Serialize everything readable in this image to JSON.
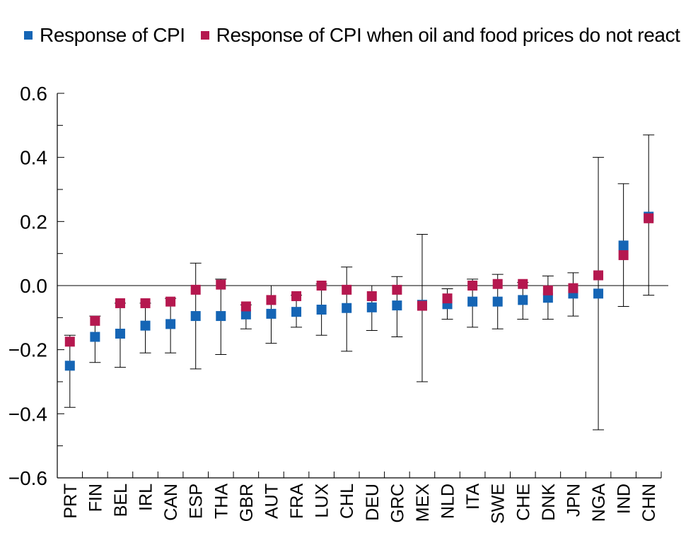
{
  "chart_data": {
    "type": "scatter",
    "title": "",
    "xlabel": "",
    "ylabel": "",
    "ylim": [
      -0.6,
      0.6
    ],
    "yticks": [
      -0.6,
      -0.4,
      -0.2,
      0.0,
      0.2,
      0.4,
      0.6
    ],
    "ytick_labels": [
      "−0.6",
      "−0.4",
      "−0.2",
      "0.0",
      "0.2",
      "0.4",
      "0.6"
    ],
    "grid": false,
    "legend_position": "top",
    "categories": [
      "PRT",
      "FIN",
      "BEL",
      "IRL",
      "CAN",
      "ESP",
      "THA",
      "GBR",
      "AUT",
      "FRA",
      "LUX",
      "CHL",
      "DEU",
      "GRC",
      "MEX",
      "NLD",
      "ITA",
      "SWE",
      "CHE",
      "DNK",
      "JPN",
      "NGA",
      "IND",
      "CHN"
    ],
    "series": [
      {
        "name": "Response of CPI",
        "color": "#1565b5",
        "values": [
          -0.25,
          -0.16,
          -0.15,
          -0.125,
          -0.12,
          -0.095,
          -0.095,
          -0.09,
          -0.088,
          -0.082,
          -0.075,
          -0.07,
          -0.068,
          -0.062,
          -0.06,
          -0.058,
          -0.05,
          -0.05,
          -0.045,
          -0.038,
          -0.025,
          -0.025,
          0.125,
          0.215
        ]
      },
      {
        "name": "Response of CPI when oil and food prices do not react",
        "color": "#b5184f",
        "values": [
          -0.175,
          -0.11,
          -0.055,
          -0.055,
          -0.05,
          -0.013,
          0.003,
          -0.065,
          -0.045,
          -0.033,
          0.0,
          -0.013,
          -0.033,
          -0.013,
          -0.063,
          -0.04,
          0.0,
          0.005,
          0.005,
          -0.015,
          -0.008,
          0.032,
          0.095,
          0.21
        ]
      }
    ],
    "error_bars": {
      "lower": [
        -0.38,
        -0.24,
        -0.255,
        -0.21,
        -0.21,
        -0.26,
        -0.215,
        -0.135,
        -0.18,
        -0.13,
        -0.155,
        -0.205,
        -0.14,
        -0.16,
        -0.3,
        -0.105,
        -0.13,
        -0.135,
        -0.105,
        -0.105,
        -0.095,
        -0.45,
        -0.065,
        -0.03
      ],
      "upper": [
        -0.155,
        -0.095,
        -0.055,
        -0.055,
        -0.04,
        0.07,
        0.02,
        -0.06,
        0.0,
        -0.03,
        0.005,
        0.058,
        0.0,
        0.028,
        0.16,
        -0.01,
        0.02,
        0.035,
        0.01,
        0.03,
        0.04,
        0.4,
        0.318,
        0.47
      ]
    }
  }
}
